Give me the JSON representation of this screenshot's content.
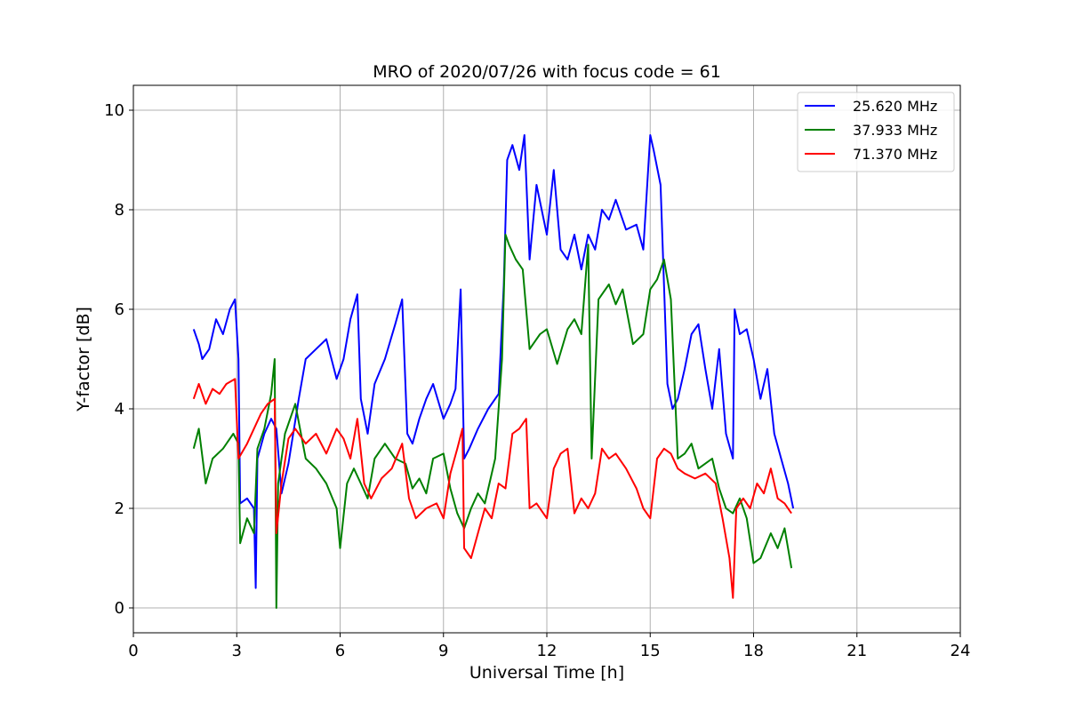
{
  "chart_data": {
    "type": "line",
    "title": "MRO of 2020/07/26 with focus code = 61",
    "xlabel": "Universal Time [h]",
    "ylabel": "Y-factor [dB]",
    "xlim": [
      0,
      24
    ],
    "ylim": [
      -0.5,
      10.5
    ],
    "xticks": [
      0,
      3,
      6,
      9,
      12,
      15,
      18,
      21,
      24
    ],
    "yticks": [
      0,
      2,
      4,
      6,
      8,
      10
    ],
    "grid": true,
    "legend_position": "top-right",
    "series": [
      {
        "name": "25.620 MHz",
        "color": "#0000ff",
        "x": [
          1.75,
          1.9,
          2.0,
          2.2,
          2.4,
          2.6,
          2.8,
          2.95,
          3.05,
          3.1,
          3.3,
          3.5,
          3.55,
          3.6,
          3.8,
          4.0,
          4.15,
          4.3,
          4.5,
          4.8,
          5.0,
          5.3,
          5.6,
          5.9,
          6.1,
          6.3,
          6.5,
          6.6,
          6.8,
          7.0,
          7.3,
          7.6,
          7.8,
          7.95,
          8.1,
          8.3,
          8.5,
          8.7,
          9.0,
          9.2,
          9.35,
          9.5,
          9.6,
          9.75,
          10.0,
          10.3,
          10.6,
          10.75,
          10.85,
          11.0,
          11.2,
          11.35,
          11.5,
          11.7,
          12.0,
          12.2,
          12.4,
          12.6,
          12.8,
          13.0,
          13.2,
          13.4,
          13.6,
          13.8,
          14.0,
          14.3,
          14.6,
          14.8,
          15.0,
          15.1,
          15.3,
          15.5,
          15.65,
          15.8,
          16.0,
          16.2,
          16.4,
          16.6,
          16.8,
          17.0,
          17.2,
          17.4,
          17.45,
          17.6,
          17.8,
          18.0,
          18.2,
          18.4,
          18.6,
          18.8,
          19.0,
          19.15
        ],
        "y": [
          5.6,
          5.3,
          5.0,
          5.2,
          5.8,
          5.5,
          6.0,
          6.2,
          5.0,
          2.1,
          2.2,
          2.0,
          0.4,
          3.0,
          3.5,
          3.8,
          3.6,
          2.3,
          2.9,
          4.2,
          5.0,
          5.2,
          5.4,
          4.6,
          5.0,
          5.8,
          6.3,
          4.2,
          3.5,
          4.5,
          5.0,
          5.7,
          6.2,
          3.5,
          3.3,
          3.8,
          4.2,
          4.5,
          3.8,
          4.1,
          4.4,
          6.4,
          3.0,
          3.2,
          3.6,
          4.0,
          4.3,
          6.5,
          9.0,
          9.3,
          8.8,
          9.5,
          7.0,
          8.5,
          7.5,
          8.8,
          7.2,
          7.0,
          7.5,
          6.8,
          7.5,
          7.2,
          8.0,
          7.8,
          8.2,
          7.6,
          7.7,
          7.2,
          9.5,
          9.2,
          8.5,
          4.5,
          4.0,
          4.2,
          4.8,
          5.5,
          5.7,
          4.8,
          4.0,
          5.2,
          3.5,
          3.0,
          6.0,
          5.5,
          5.6,
          5.0,
          4.2,
          4.8,
          3.5,
          3.0,
          2.5,
          2.0
        ]
      },
      {
        "name": "37.933 MHz",
        "color": "#008000",
        "x": [
          1.75,
          1.9,
          2.1,
          2.3,
          2.6,
          2.9,
          3.05,
          3.1,
          3.3,
          3.5,
          3.6,
          3.8,
          4.0,
          4.1,
          4.15,
          4.2,
          4.4,
          4.7,
          5.0,
          5.3,
          5.6,
          5.9,
          6.0,
          6.2,
          6.4,
          6.6,
          6.8,
          7.0,
          7.3,
          7.6,
          7.9,
          8.1,
          8.3,
          8.5,
          8.7,
          9.0,
          9.2,
          9.4,
          9.6,
          9.8,
          10.0,
          10.2,
          10.5,
          10.7,
          10.8,
          10.9,
          11.1,
          11.3,
          11.5,
          11.8,
          12.0,
          12.3,
          12.6,
          12.8,
          13.0,
          13.2,
          13.3,
          13.5,
          13.8,
          14.0,
          14.2,
          14.5,
          14.8,
          15.0,
          15.2,
          15.4,
          15.6,
          15.8,
          16.0,
          16.2,
          16.4,
          16.6,
          16.8,
          17.0,
          17.2,
          17.4,
          17.6,
          17.8,
          18.0,
          18.2,
          18.5,
          18.7,
          18.9,
          19.1
        ],
        "y": [
          3.2,
          3.6,
          2.5,
          3.0,
          3.2,
          3.5,
          3.3,
          1.3,
          1.8,
          1.5,
          3.2,
          3.6,
          4.3,
          5.0,
          0.0,
          2.5,
          3.5,
          4.1,
          3.0,
          2.8,
          2.5,
          2.0,
          1.2,
          2.5,
          2.8,
          2.5,
          2.2,
          3.0,
          3.3,
          3.0,
          2.9,
          2.4,
          2.6,
          2.3,
          3.0,
          3.1,
          2.4,
          1.9,
          1.6,
          2.0,
          2.3,
          2.1,
          3.0,
          5.0,
          7.5,
          7.3,
          7.0,
          6.8,
          5.2,
          5.5,
          5.6,
          4.9,
          5.6,
          5.8,
          5.5,
          7.3,
          3.0,
          6.2,
          6.5,
          6.1,
          6.4,
          5.3,
          5.5,
          6.4,
          6.6,
          7.0,
          6.2,
          3.0,
          3.1,
          3.3,
          2.8,
          2.9,
          3.0,
          2.4,
          2.0,
          1.9,
          2.2,
          1.8,
          0.9,
          1.0,
          1.5,
          1.2,
          1.6,
          0.8
        ]
      },
      {
        "name": "71.370 MHz",
        "color": "#ff0000",
        "x": [
          1.75,
          1.9,
          2.1,
          2.3,
          2.5,
          2.7,
          2.95,
          3.05,
          3.3,
          3.5,
          3.7,
          3.9,
          4.1,
          4.15,
          4.3,
          4.5,
          4.7,
          5.0,
          5.3,
          5.6,
          5.9,
          6.1,
          6.3,
          6.5,
          6.7,
          6.9,
          7.2,
          7.5,
          7.8,
          8.0,
          8.2,
          8.5,
          8.8,
          9.0,
          9.2,
          9.4,
          9.55,
          9.6,
          9.8,
          10.0,
          10.2,
          10.4,
          10.6,
          10.8,
          11.0,
          11.2,
          11.4,
          11.5,
          11.7,
          12.0,
          12.2,
          12.4,
          12.6,
          12.8,
          13.0,
          13.2,
          13.4,
          13.6,
          13.8,
          14.0,
          14.3,
          14.6,
          14.8,
          15.0,
          15.2,
          15.4,
          15.6,
          15.8,
          16.0,
          16.3,
          16.6,
          16.9,
          17.1,
          17.3,
          17.4,
          17.5,
          17.7,
          17.9,
          18.1,
          18.3,
          18.5,
          18.7,
          18.9,
          19.1
        ],
        "y": [
          4.2,
          4.5,
          4.1,
          4.4,
          4.3,
          4.5,
          4.6,
          3.0,
          3.3,
          3.6,
          3.9,
          4.1,
          4.2,
          1.5,
          2.5,
          3.4,
          3.6,
          3.3,
          3.5,
          3.1,
          3.6,
          3.4,
          3.0,
          3.8,
          2.5,
          2.2,
          2.6,
          2.8,
          3.3,
          2.2,
          1.8,
          2.0,
          2.1,
          1.8,
          2.7,
          3.2,
          3.6,
          1.2,
          1.0,
          1.5,
          2.0,
          1.8,
          2.5,
          2.4,
          3.5,
          3.6,
          3.8,
          2.0,
          2.1,
          1.8,
          2.8,
          3.1,
          3.2,
          1.9,
          2.2,
          2.0,
          2.3,
          3.2,
          3.0,
          3.1,
          2.8,
          2.4,
          2.0,
          1.8,
          3.0,
          3.2,
          3.1,
          2.8,
          2.7,
          2.6,
          2.7,
          2.5,
          1.8,
          1.0,
          0.2,
          2.0,
          2.2,
          2.0,
          2.5,
          2.3,
          2.8,
          2.2,
          2.1,
          1.9
        ]
      }
    ]
  }
}
